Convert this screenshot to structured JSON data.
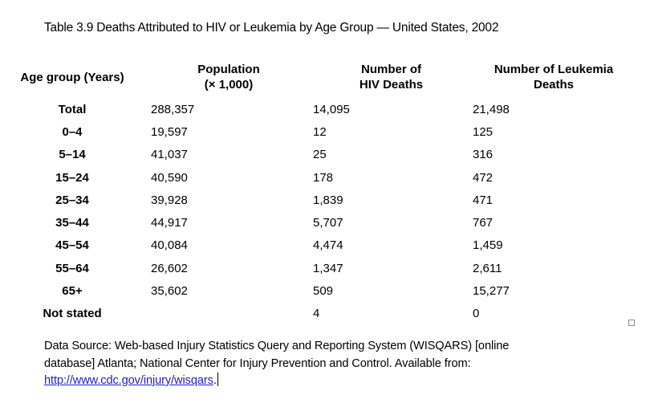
{
  "title": "Table 3.9 Deaths Attributed to HIV or Leukemia by Age Group — United States, 2002",
  "table": {
    "headers": {
      "age": "Age group (Years)",
      "population_line1": "Population",
      "population_line2": "(× 1,000)",
      "hiv_line1": "Number of",
      "hiv_line2": "HIV Deaths",
      "leukemia_line1": "Number of Leukemia",
      "leukemia_line2": "Deaths"
    },
    "rows": [
      {
        "age": "Total",
        "population": "288,357",
        "hiv": "14,095",
        "leukemia": "21,498"
      },
      {
        "age": "0–4",
        "population": "19,597",
        "hiv": "12",
        "leukemia": "125"
      },
      {
        "age": "5–14",
        "population": "41,037",
        "hiv": "25",
        "leukemia": "316"
      },
      {
        "age": "15–24",
        "population": "40,590",
        "hiv": "178",
        "leukemia": "472"
      },
      {
        "age": "25–34",
        "population": "39,928",
        "hiv": "1,839",
        "leukemia": "471"
      },
      {
        "age": "35–44",
        "population": "44,917",
        "hiv": "5,707",
        "leukemia": "767"
      },
      {
        "age": "45–54",
        "population": "40,084",
        "hiv": "4,474",
        "leukemia": "1,459"
      },
      {
        "age": "55–64",
        "population": "26,602",
        "hiv": "1,347",
        "leukemia": "2,611"
      },
      {
        "age": "65+",
        "population": "35,602",
        "hiv": "509",
        "leukemia": "15,277"
      },
      {
        "age": "Not stated",
        "population": "",
        "hiv": "4",
        "leukemia": "0"
      }
    ]
  },
  "footer": {
    "line1": "Data Source: Web-based Injury Statistics Query and Reporting System (WISQARS) [online",
    "line2": "database] Atlanta; National Center for Injury Prevention and Control. Available from:",
    "link_text": "http://www.cdc.gov/injury/wisqars",
    "after_link": "."
  },
  "colors": {
    "link": "#1d1dd1",
    "text": "#000000",
    "background": "#ffffff"
  }
}
